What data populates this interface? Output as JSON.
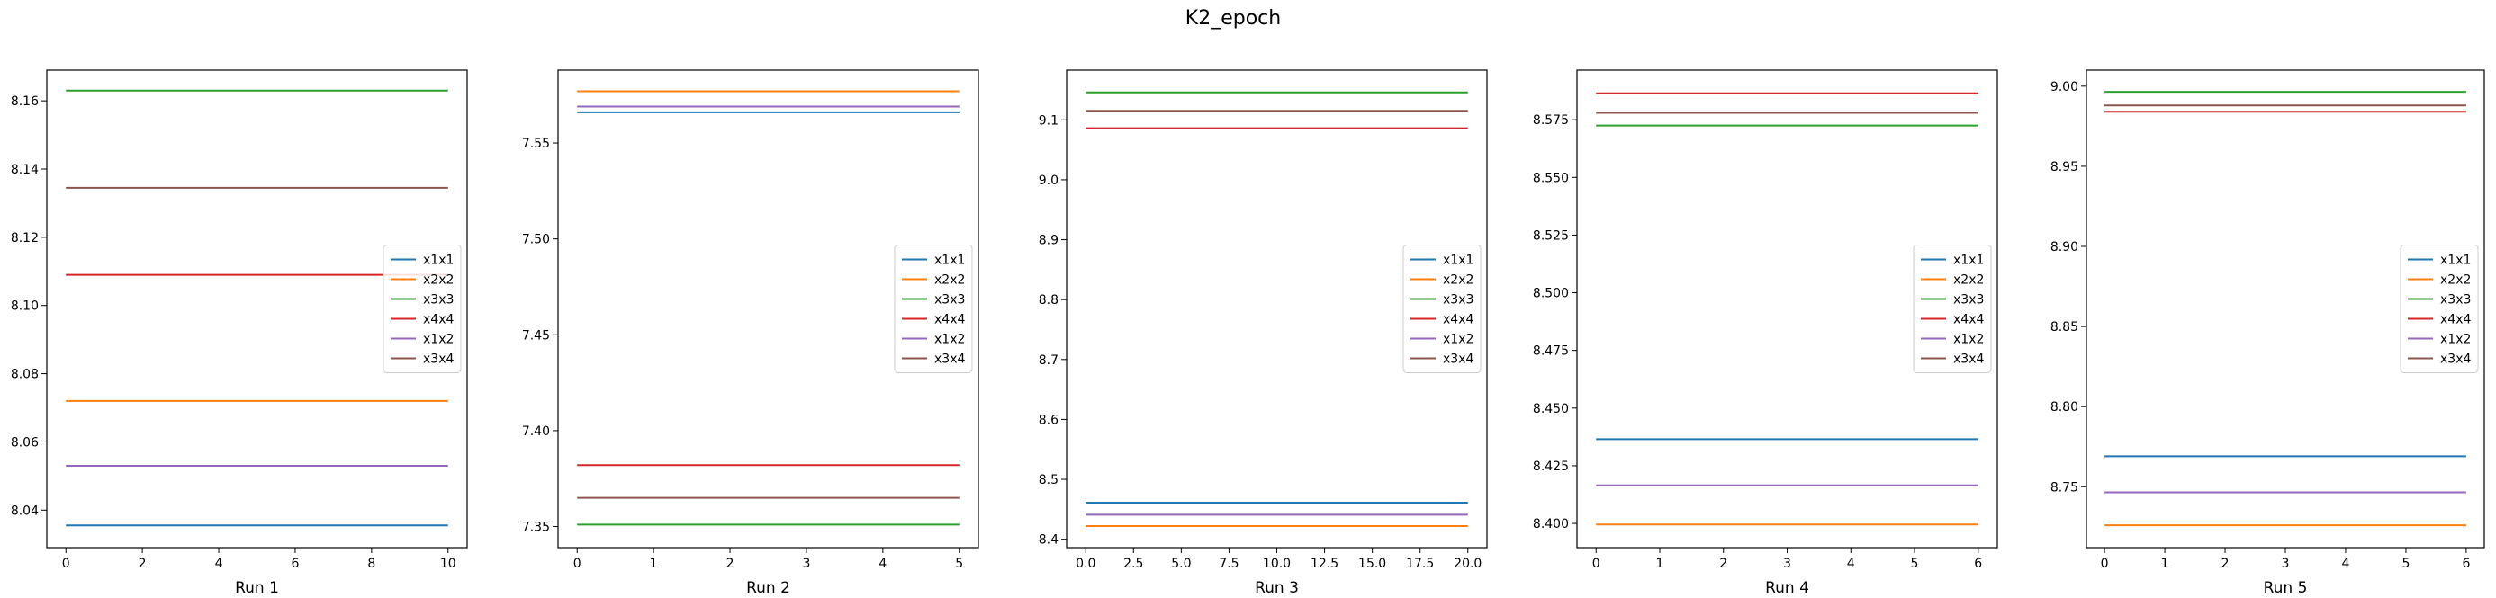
{
  "figure": {
    "title": "K2_epoch"
  },
  "legend_location": "center right",
  "chart_data": [
    {
      "type": "line",
      "title": "",
      "xlabel": "Run 1",
      "ylabel": "",
      "xlim": [
        -0.5,
        10.5
      ],
      "ylim": [
        8.029,
        8.169
      ],
      "xticks": [
        0,
        2,
        4,
        6,
        8,
        10
      ],
      "xtick_labels": [
        "0",
        "2",
        "4",
        "6",
        "8",
        "10"
      ],
      "yticks": [
        8.04,
        8.06,
        8.08,
        8.1,
        8.12,
        8.14,
        8.16
      ],
      "ytick_labels": [
        "8.04",
        "8.06",
        "8.08",
        "8.10",
        "8.12",
        "8.14",
        "8.16"
      ],
      "x": [
        0,
        10
      ],
      "series": [
        {
          "name": "x1x1",
          "color": "#1f77b4",
          "values": [
            8.0355,
            8.0355
          ]
        },
        {
          "name": "x2x2",
          "color": "#ff7f0e",
          "values": [
            8.072,
            8.072
          ]
        },
        {
          "name": "x3x3",
          "color": "#2ca02c",
          "values": [
            8.163,
            8.163
          ]
        },
        {
          "name": "x4x4",
          "color": "#d62728",
          "values": [
            8.109,
            8.109
          ]
        },
        {
          "name": "x1x2",
          "color": "#9467bd",
          "values": [
            8.053,
            8.053
          ]
        },
        {
          "name": "x3x4",
          "color": "#8c564b",
          "values": [
            8.1345,
            8.1345
          ]
        }
      ],
      "grid": false
    },
    {
      "type": "line",
      "title": "",
      "xlabel": "Run 2",
      "ylabel": "",
      "xlim": [
        -0.25,
        5.25
      ],
      "ylim": [
        7.339,
        7.588
      ],
      "xticks": [
        0,
        1,
        2,
        3,
        4,
        5
      ],
      "xtick_labels": [
        "0",
        "1",
        "2",
        "3",
        "4",
        "5"
      ],
      "yticks": [
        7.35,
        7.4,
        7.45,
        7.5,
        7.55
      ],
      "ytick_labels": [
        "7.35",
        "7.40",
        "7.45",
        "7.50",
        "7.55"
      ],
      "x": [
        0,
        5
      ],
      "series": [
        {
          "name": "x1x1",
          "color": "#1f77b4",
          "values": [
            7.566,
            7.566
          ]
        },
        {
          "name": "x2x2",
          "color": "#ff7f0e",
          "values": [
            7.577,
            7.577
          ]
        },
        {
          "name": "x3x3",
          "color": "#2ca02c",
          "values": [
            7.351,
            7.351
          ]
        },
        {
          "name": "x4x4",
          "color": "#d62728",
          "values": [
            7.382,
            7.382
          ]
        },
        {
          "name": "x1x2",
          "color": "#9467bd",
          "values": [
            7.569,
            7.569
          ]
        },
        {
          "name": "x3x4",
          "color": "#8c564b",
          "values": [
            7.365,
            7.365
          ]
        }
      ],
      "grid": false
    },
    {
      "type": "line",
      "title": "",
      "xlabel": "Run 3",
      "ylabel": "",
      "xlim": [
        -1,
        21
      ],
      "ylim": [
        8.386,
        9.183
      ],
      "xticks": [
        0,
        2.5,
        5,
        7.5,
        10,
        12.5,
        15,
        17.5,
        20
      ],
      "xtick_labels": [
        "0.0",
        "2.5",
        "5.0",
        "7.5",
        "10.0",
        "12.5",
        "15.0",
        "17.5",
        "20.0"
      ],
      "yticks": [
        8.4,
        8.5,
        8.6,
        8.7,
        8.8,
        8.9,
        9.0,
        9.1
      ],
      "ytick_labels": [
        "8.4",
        "8.5",
        "8.6",
        "8.7",
        "8.8",
        "8.9",
        "9.0",
        "9.1"
      ],
      "x": [
        0,
        20
      ],
      "series": [
        {
          "name": "x1x1",
          "color": "#1f77b4",
          "values": [
            8.461,
            8.461
          ]
        },
        {
          "name": "x2x2",
          "color": "#ff7f0e",
          "values": [
            8.422,
            8.422
          ]
        },
        {
          "name": "x3x3",
          "color": "#2ca02c",
          "values": [
            9.146,
            9.146
          ]
        },
        {
          "name": "x4x4",
          "color": "#d62728",
          "values": [
            9.086,
            9.086
          ]
        },
        {
          "name": "x1x2",
          "color": "#9467bd",
          "values": [
            8.441,
            8.441
          ]
        },
        {
          "name": "x3x4",
          "color": "#8c564b",
          "values": [
            9.115,
            9.115
          ]
        }
      ],
      "grid": false
    },
    {
      "type": "line",
      "title": "",
      "xlabel": "Run 4",
      "ylabel": "",
      "xlim": [
        -0.3,
        6.3
      ],
      "ylim": [
        8.3895,
        8.5965
      ],
      "xticks": [
        0,
        1,
        2,
        3,
        4,
        5,
        6
      ],
      "xtick_labels": [
        "0",
        "1",
        "2",
        "3",
        "4",
        "5",
        "6"
      ],
      "yticks": [
        8.4,
        8.425,
        8.45,
        8.475,
        8.5,
        8.525,
        8.55,
        8.575
      ],
      "ytick_labels": [
        "8.400",
        "8.425",
        "8.450",
        "8.475",
        "8.500",
        "8.525",
        "8.550",
        "8.575"
      ],
      "x": [
        0,
        6
      ],
      "series": [
        {
          "name": "x1x1",
          "color": "#1f77b4",
          "values": [
            8.4365,
            8.4365
          ]
        },
        {
          "name": "x2x2",
          "color": "#ff7f0e",
          "values": [
            8.3995,
            8.3995
          ]
        },
        {
          "name": "x3x3",
          "color": "#2ca02c",
          "values": [
            8.5725,
            8.5725
          ]
        },
        {
          "name": "x4x4",
          "color": "#d62728",
          "values": [
            8.5865,
            8.5865
          ]
        },
        {
          "name": "x1x2",
          "color": "#9467bd",
          "values": [
            8.4165,
            8.4165
          ]
        },
        {
          "name": "x3x4",
          "color": "#8c564b",
          "values": [
            8.578,
            8.578
          ]
        }
      ],
      "grid": false
    },
    {
      "type": "line",
      "title": "",
      "xlabel": "Run 5",
      "ylabel": "",
      "xlim": [
        -0.3,
        6.3
      ],
      "ylim": [
        8.712,
        9.01
      ],
      "xticks": [
        0,
        1,
        2,
        3,
        4,
        5,
        6
      ],
      "xtick_labels": [
        "0",
        "1",
        "2",
        "3",
        "4",
        "5",
        "6"
      ],
      "yticks": [
        8.75,
        8.8,
        8.85,
        8.9,
        8.95,
        9.0
      ],
      "ytick_labels": [
        "8.75",
        "8.80",
        "8.85",
        "8.90",
        "8.95",
        "9.00"
      ],
      "x": [
        0,
        6
      ],
      "series": [
        {
          "name": "x1x1",
          "color": "#1f77b4",
          "values": [
            8.769,
            8.769
          ]
        },
        {
          "name": "x2x2",
          "color": "#ff7f0e",
          "values": [
            8.726,
            8.726
          ]
        },
        {
          "name": "x3x3",
          "color": "#2ca02c",
          "values": [
            8.9965,
            8.9965
          ]
        },
        {
          "name": "x4x4",
          "color": "#d62728",
          "values": [
            8.984,
            8.984
          ]
        },
        {
          "name": "x1x2",
          "color": "#9467bd",
          "values": [
            8.7465,
            8.7465
          ]
        },
        {
          "name": "x3x4",
          "color": "#8c564b",
          "values": [
            8.988,
            8.988
          ]
        }
      ],
      "grid": false
    }
  ]
}
